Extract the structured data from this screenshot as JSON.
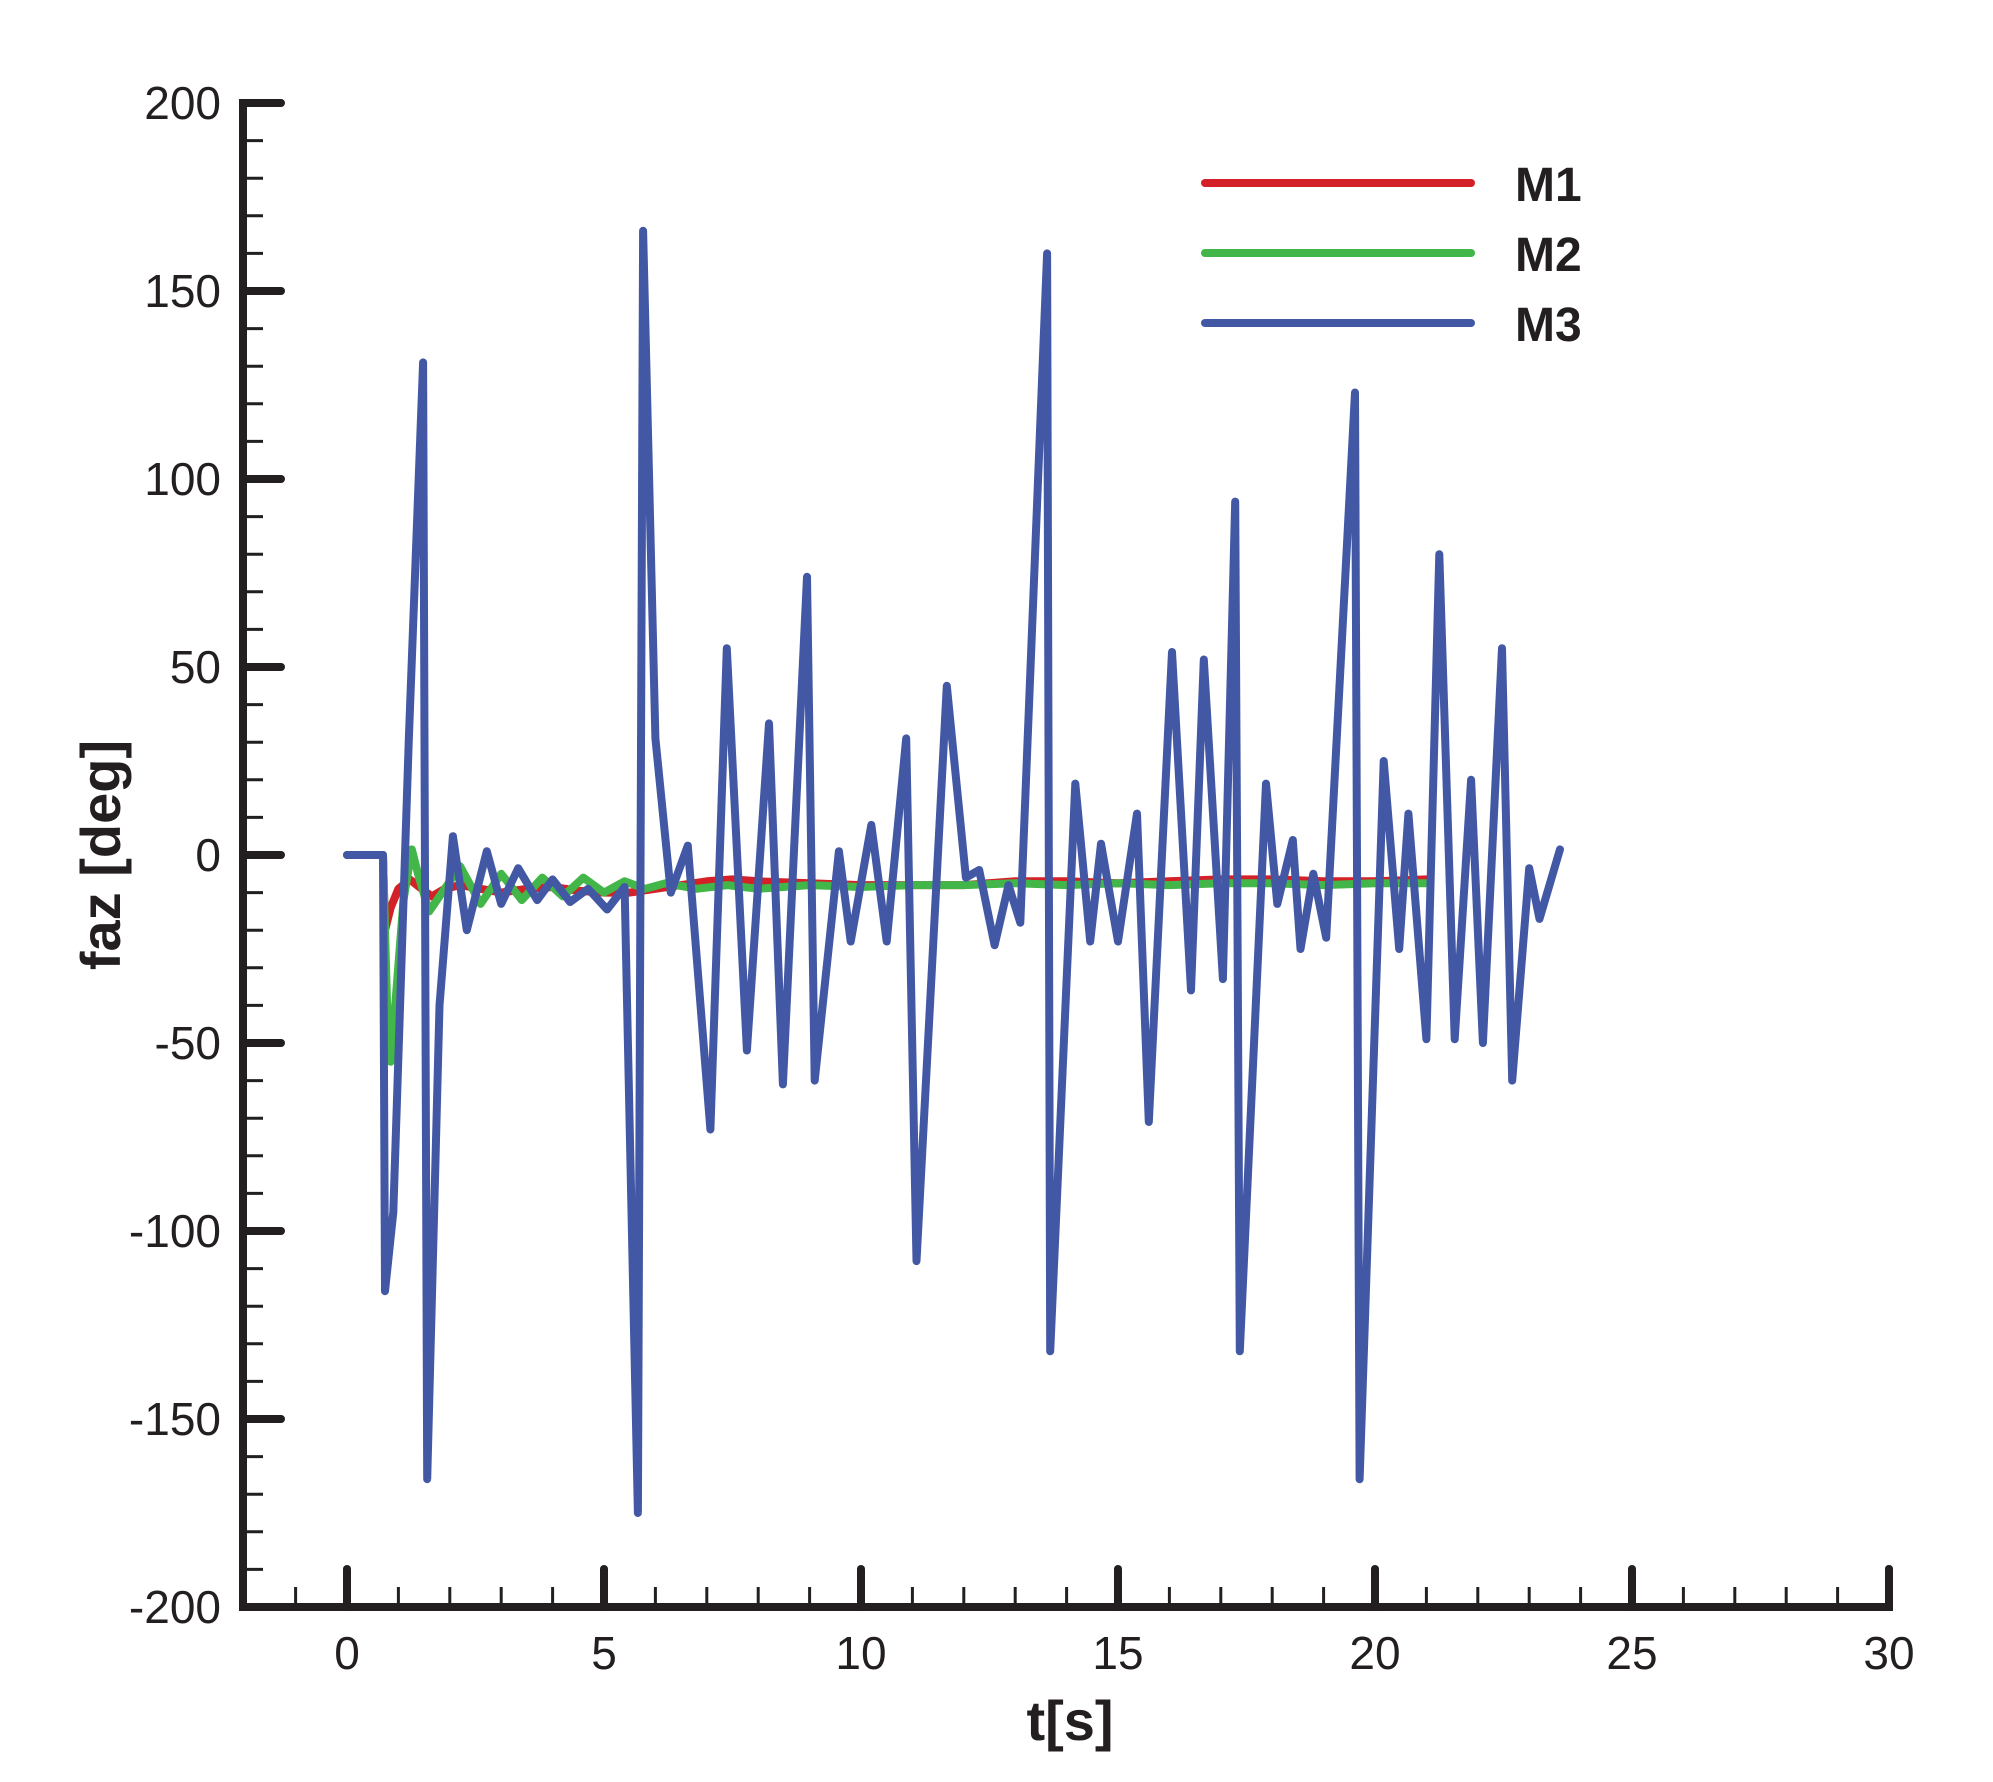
{
  "chart_data": {
    "type": "line",
    "title": "",
    "xlabel": "t[s]",
    "ylabel": "faz [deg]",
    "xlim": [
      -2,
      30
    ],
    "ylim": [
      -200,
      200
    ],
    "x_ticks": [
      0,
      5,
      10,
      15,
      20,
      25,
      30
    ],
    "x_tick_labels": [
      "0",
      "5",
      "10",
      "15",
      "20",
      "25",
      "30"
    ],
    "y_ticks": [
      200,
      150,
      100,
      50,
      0,
      -50,
      -100,
      -150,
      -200
    ],
    "y_tick_labels": [
      "200",
      "150",
      "100",
      "50",
      "0",
      "-50",
      "-100",
      "-150",
      "-200"
    ],
    "grid": false,
    "legend_position": "upper right",
    "series": [
      {
        "name": "M1",
        "color": "#d42027",
        "points": [
          [
            0,
            0
          ],
          [
            0.7,
            0
          ],
          [
            0.74,
            -20
          ],
          [
            0.85,
            -14
          ],
          [
            1.0,
            -9
          ],
          [
            1.22,
            -6.5
          ],
          [
            1.45,
            -9
          ],
          [
            1.65,
            -11
          ],
          [
            1.9,
            -9
          ],
          [
            2.2,
            -8
          ],
          [
            2.6,
            -9
          ],
          [
            3.0,
            -10
          ],
          [
            3.5,
            -9
          ],
          [
            4.0,
            -8.5
          ],
          [
            4.5,
            -9.5
          ],
          [
            5.0,
            -10
          ],
          [
            5.5,
            -10
          ],
          [
            6.0,
            -9
          ],
          [
            6.5,
            -8
          ],
          [
            7.0,
            -7
          ],
          [
            7.5,
            -6.5
          ],
          [
            8.0,
            -7
          ],
          [
            9.0,
            -7.5
          ],
          [
            10.0,
            -8
          ],
          [
            11.0,
            -8
          ],
          [
            12.0,
            -8
          ],
          [
            13.0,
            -7
          ],
          [
            14.0,
            -7
          ],
          [
            15.0,
            -7.5
          ],
          [
            16.0,
            -7
          ],
          [
            17.0,
            -6.5
          ],
          [
            18.0,
            -6.5
          ],
          [
            19.0,
            -7
          ],
          [
            20.0,
            -7
          ],
          [
            21.0,
            -6.5
          ]
        ]
      },
      {
        "name": "M2",
        "color": "#43b649",
        "points": [
          [
            0,
            0
          ],
          [
            0.7,
            0
          ],
          [
            0.78,
            -40
          ],
          [
            0.85,
            -55
          ],
          [
            0.95,
            -38
          ],
          [
            1.1,
            -12
          ],
          [
            1.26,
            1.5
          ],
          [
            1.4,
            -6
          ],
          [
            1.6,
            -15
          ],
          [
            1.85,
            -10
          ],
          [
            2.2,
            -3
          ],
          [
            2.6,
            -13
          ],
          [
            3.0,
            -5
          ],
          [
            3.4,
            -12
          ],
          [
            3.8,
            -6
          ],
          [
            4.2,
            -11
          ],
          [
            4.6,
            -6
          ],
          [
            5.0,
            -10
          ],
          [
            5.4,
            -7
          ],
          [
            5.8,
            -9
          ],
          [
            6.2,
            -7.5
          ],
          [
            6.8,
            -9
          ],
          [
            7.4,
            -8
          ],
          [
            8.0,
            -9
          ],
          [
            9.0,
            -8
          ],
          [
            10.0,
            -8.5
          ],
          [
            11.0,
            -8
          ],
          [
            12.0,
            -8
          ],
          [
            13.0,
            -7.5
          ],
          [
            14.0,
            -8
          ],
          [
            15.0,
            -7.5
          ],
          [
            16.0,
            -8
          ],
          [
            17.0,
            -7.5
          ],
          [
            18.0,
            -7.5
          ],
          [
            19.0,
            -8
          ],
          [
            20.0,
            -7.5
          ],
          [
            21.0,
            -7.5
          ]
        ]
      },
      {
        "name": "M3",
        "color": "#4358a5",
        "points": [
          [
            0,
            0
          ],
          [
            0.7,
            0
          ],
          [
            0.74,
            -116
          ],
          [
            0.9,
            -95
          ],
          [
            1.2,
            30
          ],
          [
            1.48,
            131
          ],
          [
            1.56,
            -166
          ],
          [
            1.8,
            -40
          ],
          [
            2.06,
            5
          ],
          [
            2.33,
            -20
          ],
          [
            2.72,
            1
          ],
          [
            3.0,
            -13
          ],
          [
            3.33,
            -3.5
          ],
          [
            3.7,
            -12
          ],
          [
            4.0,
            -6.5
          ],
          [
            4.34,
            -12.5
          ],
          [
            4.69,
            -9
          ],
          [
            5.06,
            -14.5
          ],
          [
            5.4,
            -8.5
          ],
          [
            5.66,
            -175
          ],
          [
            5.76,
            166
          ],
          [
            6.0,
            31
          ],
          [
            6.3,
            -10
          ],
          [
            6.63,
            2.5
          ],
          [
            7.07,
            -73
          ],
          [
            7.39,
            55
          ],
          [
            7.78,
            -52
          ],
          [
            8.21,
            35
          ],
          [
            8.48,
            -61
          ],
          [
            8.95,
            74
          ],
          [
            9.1,
            -60
          ],
          [
            9.57,
            1
          ],
          [
            9.8,
            -23
          ],
          [
            10.2,
            8
          ],
          [
            10.5,
            -23
          ],
          [
            10.88,
            31
          ],
          [
            11.08,
            -108
          ],
          [
            11.67,
            45
          ],
          [
            12.04,
            -6
          ],
          [
            12.3,
            -4
          ],
          [
            12.6,
            -24
          ],
          [
            12.87,
            -8
          ],
          [
            13.1,
            -18
          ],
          [
            13.62,
            160
          ],
          [
            13.68,
            -132
          ],
          [
            14.17,
            19
          ],
          [
            14.46,
            -23
          ],
          [
            14.67,
            3
          ],
          [
            15.0,
            -23
          ],
          [
            15.37,
            11
          ],
          [
            15.6,
            -71
          ],
          [
            16.05,
            54
          ],
          [
            16.42,
            -36
          ],
          [
            16.67,
            52
          ],
          [
            17.04,
            -33
          ],
          [
            17.28,
            94
          ],
          [
            17.37,
            -132
          ],
          [
            17.88,
            19
          ],
          [
            18.1,
            -13
          ],
          [
            18.4,
            4
          ],
          [
            18.55,
            -25
          ],
          [
            18.8,
            -5
          ],
          [
            19.05,
            -22
          ],
          [
            19.61,
            123
          ],
          [
            19.7,
            -166
          ],
          [
            20.17,
            25
          ],
          [
            20.47,
            -25
          ],
          [
            20.65,
            11
          ],
          [
            21.0,
            -49
          ],
          [
            21.25,
            80
          ],
          [
            21.55,
            -49
          ],
          [
            21.87,
            20
          ],
          [
            22.1,
            -50
          ],
          [
            22.47,
            55
          ],
          [
            22.67,
            -60
          ],
          [
            23.0,
            -3.5
          ],
          [
            23.2,
            -17
          ],
          [
            23.6,
            1.5
          ]
        ]
      }
    ]
  },
  "legend": {
    "items": [
      {
        "label": "M1",
        "color": "#d42027"
      },
      {
        "label": "M2",
        "color": "#43b649"
      },
      {
        "label": "M3",
        "color": "#4358a5"
      }
    ]
  },
  "axes": {
    "xlabel": "t[s]",
    "ylabel": "faz [deg]"
  }
}
